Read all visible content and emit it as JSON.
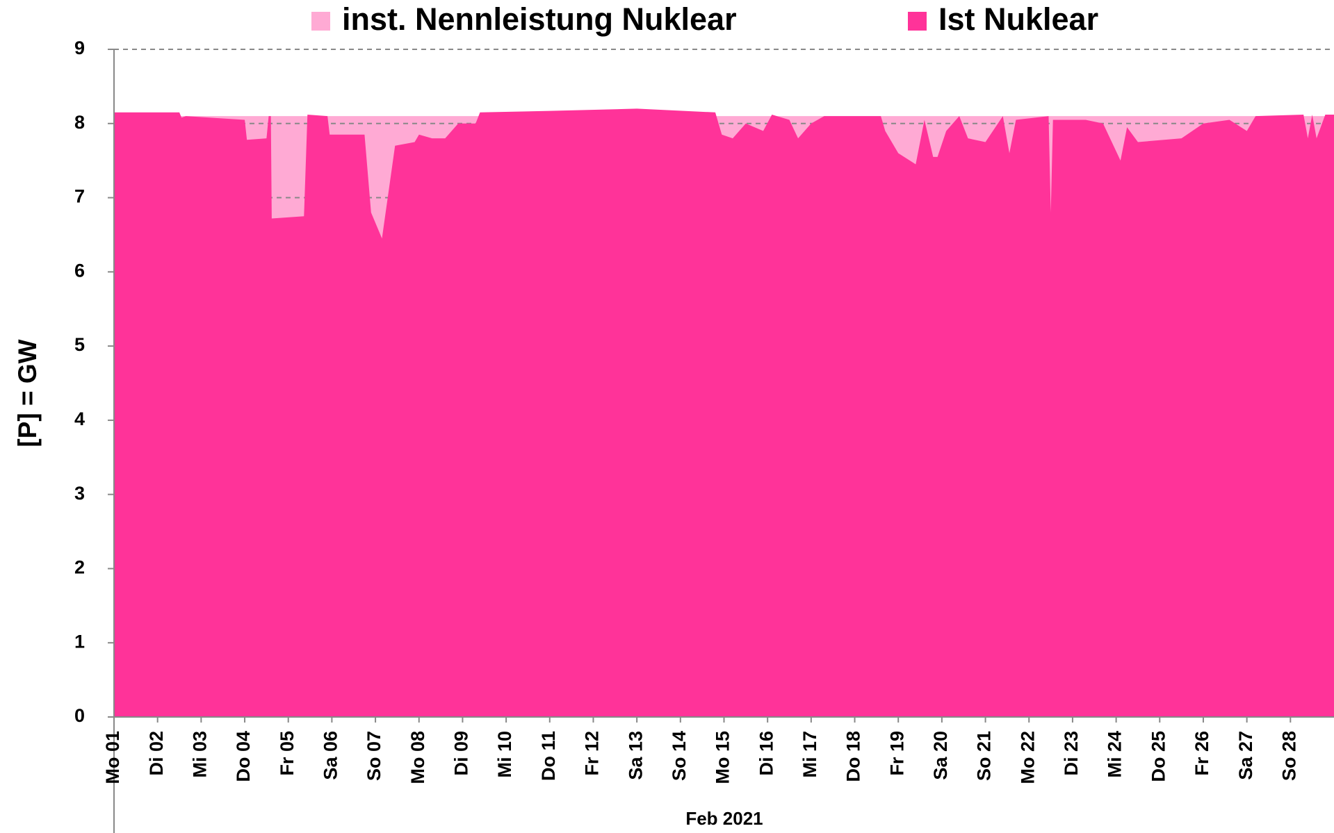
{
  "chart_data": {
    "type": "area",
    "ylabel": "[P]  =  GW",
    "xlabel": "Feb 2021",
    "x": [
      1,
      2.5,
      2.55,
      2.65,
      4.0,
      4.05,
      4.5,
      4.55,
      4.6,
      4.62,
      5.36,
      5.44,
      5.9,
      5.95,
      6.75,
      6.9,
      7.15,
      7.45,
      7.9,
      8.0,
      8.3,
      8.6,
      8.9,
      9.3,
      9.4,
      11.0,
      13.0,
      14.8,
      14.95,
      15.2,
      15.5,
      15.9,
      16.1,
      16.5,
      16.7,
      17.0,
      17.3,
      18.6,
      18.7,
      19.0,
      19.4,
      19.6,
      19.8,
      19.9,
      20.1,
      20.4,
      20.6,
      21.0,
      21.4,
      21.55,
      21.7,
      22.45,
      22.5,
      22.55,
      23.3,
      23.7,
      24.1,
      24.25,
      24.5,
      25.5,
      26.0,
      26.6,
      27.0,
      27.2,
      28.3,
      28.4,
      28.5,
      28.6,
      28.8,
      29
    ],
    "series": [
      {
        "name": "inst. Nennleistung Nuklear",
        "color": "#ffaad4",
        "values": [
          8.1,
          8.1,
          8.1,
          8.1,
          8.1,
          8.1,
          8.1,
          8.1,
          8.1,
          8.1,
          8.1,
          8.1,
          8.1,
          8.1,
          8.1,
          8.1,
          8.1,
          8.1,
          8.1,
          8.1,
          8.1,
          8.1,
          8.1,
          8.1,
          8.1,
          8.1,
          8.1,
          8.1,
          8.1,
          8.1,
          8.1,
          8.1,
          8.1,
          8.1,
          8.1,
          8.1,
          8.1,
          8.1,
          8.1,
          8.1,
          8.1,
          8.1,
          8.1,
          8.1,
          8.1,
          8.1,
          8.1,
          8.1,
          8.1,
          8.1,
          8.1,
          8.1,
          8.1,
          8.1,
          8.1,
          8.1,
          8.1,
          8.1,
          8.1,
          8.1,
          8.1,
          8.1,
          8.1,
          8.1,
          8.1,
          8.1,
          8.1,
          8.1,
          8.1,
          8.1
        ]
      },
      {
        "name": "Ist Nuklear",
        "color": "#ff3399",
        "values": [
          8.15,
          8.15,
          8.08,
          8.1,
          8.05,
          7.78,
          7.8,
          8.1,
          8.1,
          6.72,
          6.75,
          8.12,
          8.1,
          7.85,
          7.85,
          6.8,
          6.45,
          7.7,
          7.75,
          7.85,
          7.8,
          7.8,
          8.0,
          8.0,
          8.15,
          8.17,
          8.2,
          8.15,
          7.85,
          7.8,
          8.0,
          7.9,
          8.12,
          8.05,
          7.8,
          8.0,
          8.1,
          8.1,
          7.9,
          7.6,
          7.45,
          8.05,
          7.55,
          7.55,
          7.9,
          8.1,
          7.8,
          7.75,
          8.1,
          7.6,
          8.05,
          8.1,
          6.8,
          8.05,
          8.05,
          8.0,
          7.5,
          7.95,
          7.75,
          7.8,
          8.0,
          8.05,
          7.9,
          8.1,
          8.12,
          7.8,
          8.12,
          7.8,
          8.12,
          8.12
        ]
      }
    ],
    "xlim": [
      1,
      29
    ],
    "xticks": [
      {
        "value": 1,
        "label": "Mo 01"
      },
      {
        "value": 2,
        "label": "Di 02"
      },
      {
        "value": 3,
        "label": "Mi 03"
      },
      {
        "value": 4,
        "label": "Do 04"
      },
      {
        "value": 5,
        "label": "Fr 05"
      },
      {
        "value": 6,
        "label": "Sa 06"
      },
      {
        "value": 7,
        "label": "So 07"
      },
      {
        "value": 8,
        "label": "Mo 08"
      },
      {
        "value": 9,
        "label": "Di 09"
      },
      {
        "value": 10,
        "label": "Mi 10"
      },
      {
        "value": 11,
        "label": "Do 11"
      },
      {
        "value": 12,
        "label": "Fr 12"
      },
      {
        "value": 13,
        "label": "Sa 13"
      },
      {
        "value": 14,
        "label": "So 14"
      },
      {
        "value": 15,
        "label": "Mo 15"
      },
      {
        "value": 16,
        "label": "Di 16"
      },
      {
        "value": 17,
        "label": "Mi 17"
      },
      {
        "value": 18,
        "label": "Do 18"
      },
      {
        "value": 19,
        "label": "Fr 19"
      },
      {
        "value": 20,
        "label": "Sa 20"
      },
      {
        "value": 21,
        "label": "So 21"
      },
      {
        "value": 22,
        "label": "Mo 22"
      },
      {
        "value": 23,
        "label": "Di 23"
      },
      {
        "value": 24,
        "label": "Mi 24"
      },
      {
        "value": 25,
        "label": "Do 25"
      },
      {
        "value": 26,
        "label": "Fr 26"
      },
      {
        "value": 27,
        "label": "Sa 27"
      },
      {
        "value": 28,
        "label": "So 28"
      }
    ],
    "ylim": [
      0,
      9
    ],
    "yticks": [
      0,
      1,
      2,
      3,
      4,
      5,
      6,
      7,
      8,
      9
    ],
    "grid": true,
    "legend": "top"
  }
}
